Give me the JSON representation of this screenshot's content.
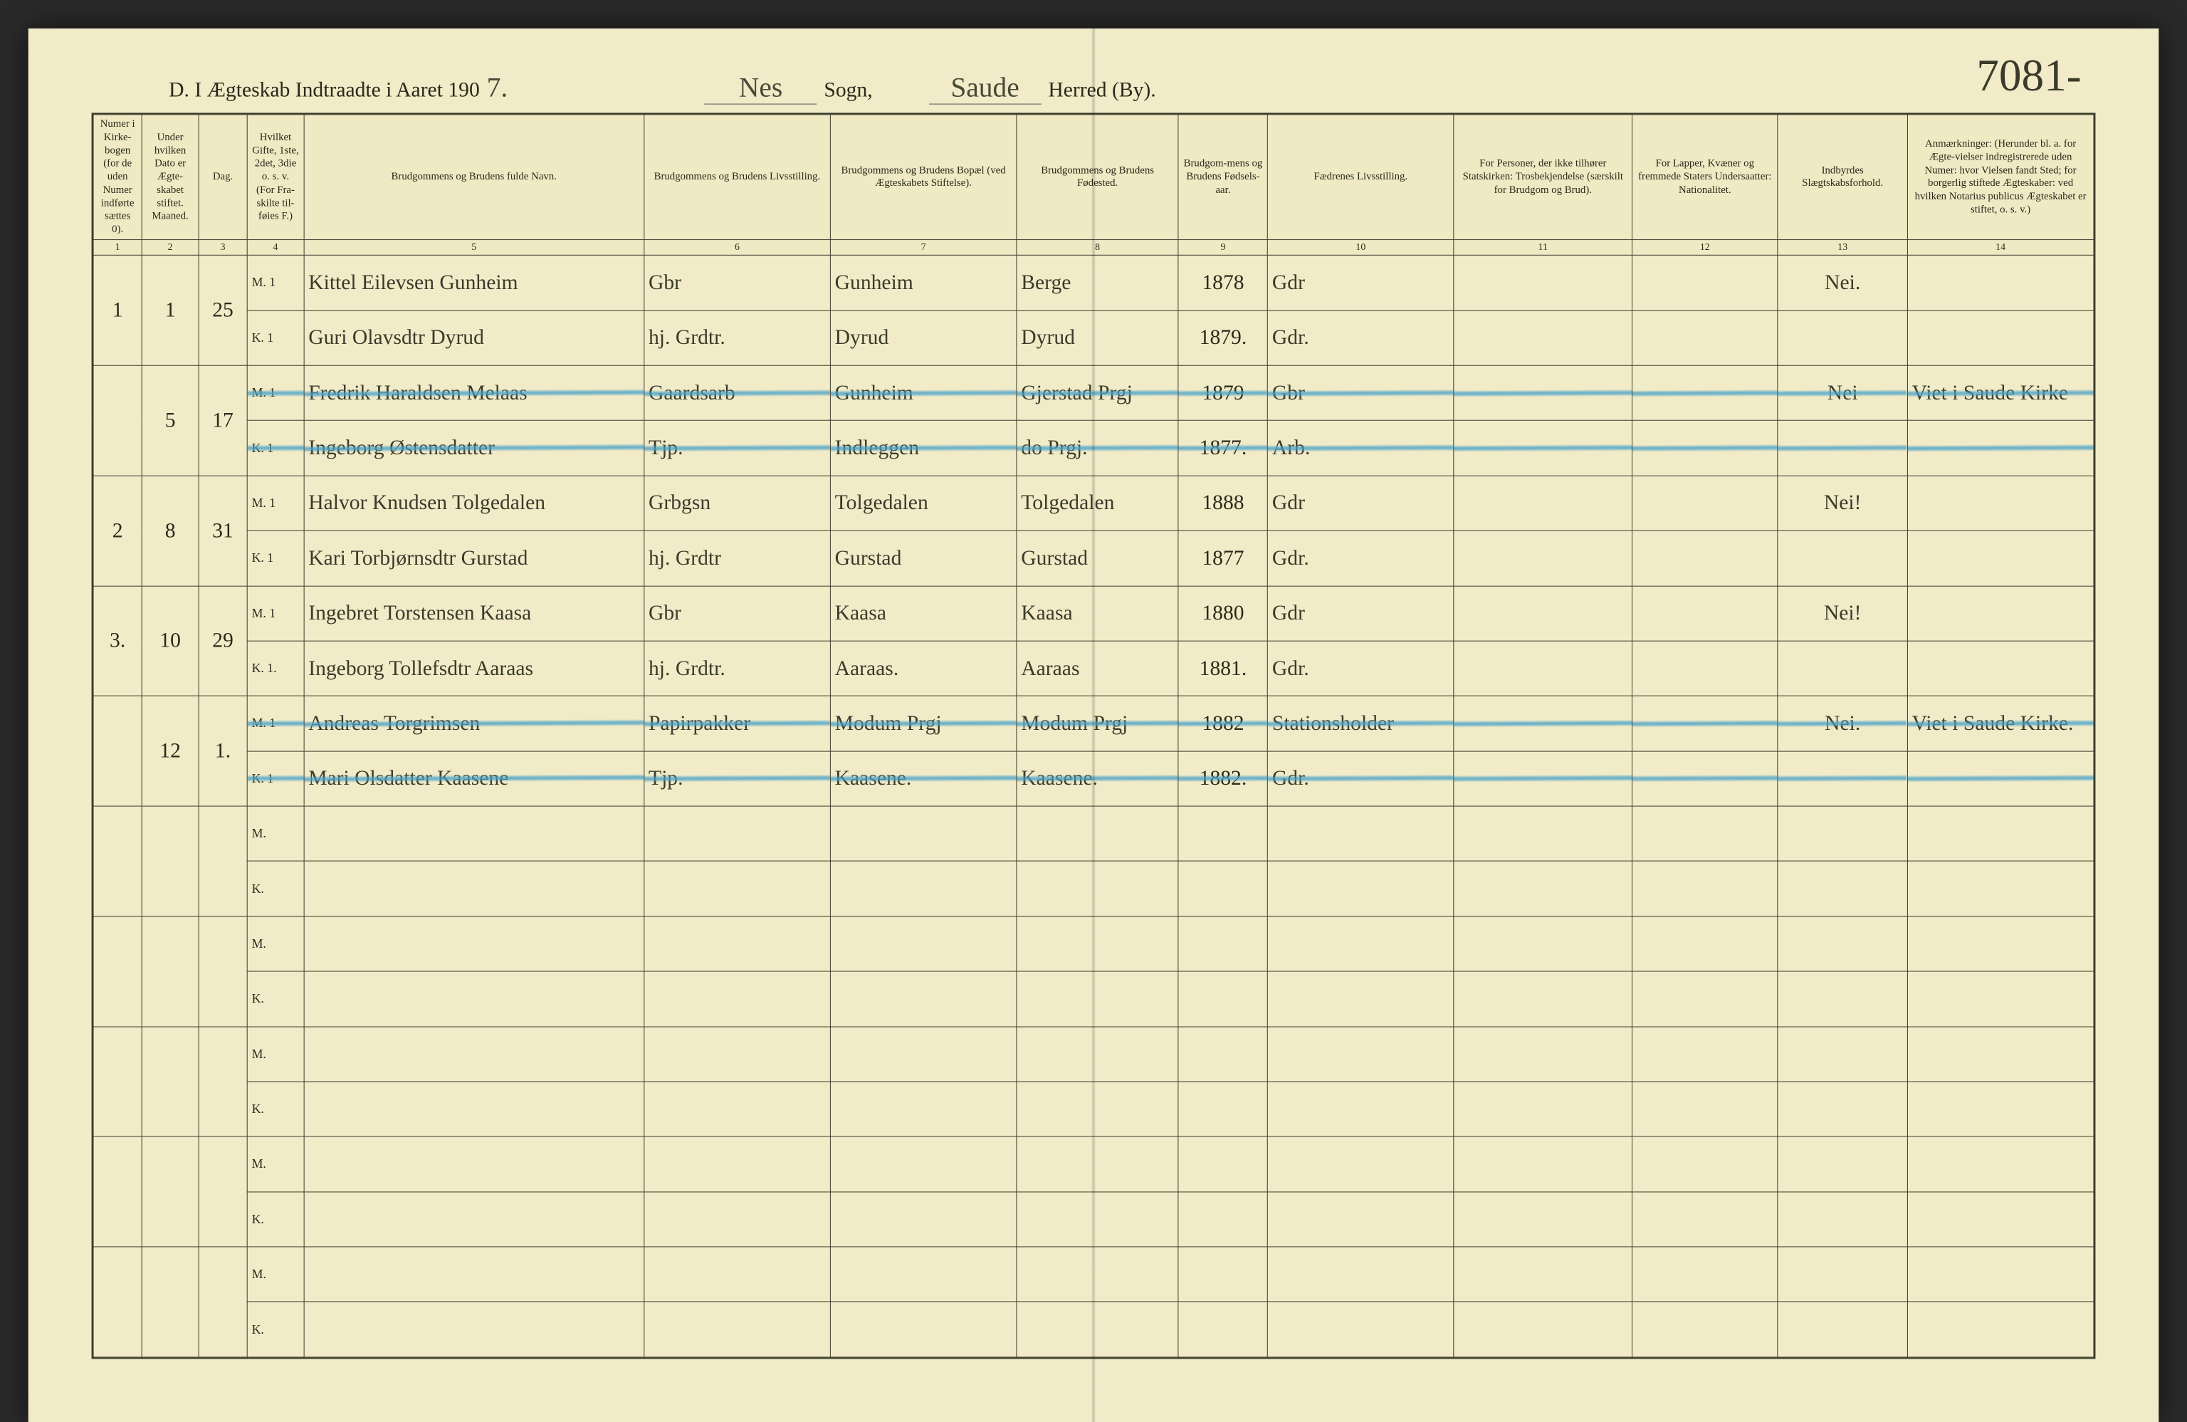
{
  "page_number_handwritten": "7081-",
  "header": {
    "prefix": "D.   I Ægteskab Indtraadte i Aaret 190",
    "year_suffix": "7.",
    "sogn_value": "Nes",
    "sogn_label": "Sogn,",
    "herred_value": "Saude",
    "herred_label": "Herred (By)."
  },
  "colors": {
    "paper": "#f1ebc8",
    "ink": "#2a2a1a",
    "rule": "#3a3a2a",
    "blue_strike": "#5aa8cf"
  },
  "columns": [
    {
      "n": "1",
      "label": "Numer i Kirke-bogen (for de uden Numer indførte sættes 0)."
    },
    {
      "n": "2",
      "label": "Under hvilken Dato er Ægte-skabet stiftet.  Maaned."
    },
    {
      "n": "3",
      "label": "Dag."
    },
    {
      "n": "4",
      "label": "Hvilket Gifte, 1ste, 2det, 3die o. s. v. (For Fra-skilte til-føies F.)"
    },
    {
      "n": "5",
      "label": "Brudgommens og Brudens fulde Navn."
    },
    {
      "n": "6",
      "label": "Brudgommens og Brudens Livsstilling."
    },
    {
      "n": "7",
      "label": "Brudgommens og Brudens Bopæl (ved Ægteskabets Stiftelse)."
    },
    {
      "n": "8",
      "label": "Brudgommens og Brudens Fødested."
    },
    {
      "n": "9",
      "label": "Brudgom-mens og Brudens Fødsels-aar."
    },
    {
      "n": "10",
      "label": "Fædrenes Livsstilling."
    },
    {
      "n": "11",
      "label": "For Personer, der ikke tilhører Statskirken: Trosbekjendelse (særskilt for Brudgom og Brud)."
    },
    {
      "n": "12",
      "label": "For Lapper, Kvæner og fremmede Staters Undersaatter: Nationalitet."
    },
    {
      "n": "13",
      "label": "Indbyrdes Slægtskabsforhold."
    },
    {
      "n": "14",
      "label": "Anmærkninger: (Herunder bl. a. for Ægte-vielser indregistrerede uden Numer: hvor Vielsen fandt Sted; for borgerlig stiftede Ægteskaber: ved hvilken Notarius publicus Ægteskabet er stiftet, o. s. v.)"
    }
  ],
  "entries": [
    {
      "num": "1",
      "maaned": "1",
      "dag": "25",
      "struck": false,
      "m": {
        "gift": "M. 1",
        "navn": "Kittel Eilevsen Gunheim",
        "stilling": "Gbr",
        "bopael": "Gunheim",
        "fodested": "Berge",
        "aar": "1878",
        "faedre": "Gdr",
        "c11": "",
        "c12": "",
        "slaegt": "Nei.",
        "anm": ""
      },
      "k": {
        "gift": "K. 1",
        "navn": "Guri Olavsdtr Dyrud",
        "stilling": "hj. Grdtr.",
        "bopael": "Dyrud",
        "fodested": "Dyrud",
        "aar": "1879.",
        "faedre": "Gdr.",
        "c11": "",
        "c12": "",
        "slaegt": "",
        "anm": ""
      }
    },
    {
      "num": "",
      "maaned": "5",
      "dag": "17",
      "struck": true,
      "m": {
        "gift": "M. 1",
        "navn": "Fredrik Haraldsen Melaas",
        "stilling": "Gaardsarb",
        "bopael": "Gunheim",
        "fodested": "Gjerstad Prgj",
        "aar": "1879",
        "faedre": "Gbr",
        "c11": "",
        "c12": "",
        "slaegt": "Nei",
        "anm": "Viet i Saude Kirke"
      },
      "k": {
        "gift": "K. 1",
        "navn": "Ingeborg Østensdatter",
        "stilling": "Tjp.",
        "bopael": "Indleggen",
        "fodested": "do Prgj.",
        "aar": "1877.",
        "faedre": "Arb.",
        "c11": "",
        "c12": "",
        "slaegt": "",
        "anm": ""
      }
    },
    {
      "num": "2",
      "maaned": "8",
      "dag": "31",
      "struck": false,
      "m": {
        "gift": "M. 1",
        "navn": "Halvor Knudsen Tolgedalen",
        "stilling": "Grbgsn",
        "bopael": "Tolgedalen",
        "fodested": "Tolgedalen",
        "aar": "1888",
        "faedre": "Gdr",
        "c11": "",
        "c12": "",
        "slaegt": "Nei!",
        "anm": ""
      },
      "k": {
        "gift": "K. 1",
        "navn": "Kari Torbjørnsdtr Gurstad",
        "stilling": "hj. Grdtr",
        "bopael": "Gurstad",
        "fodested": "Gurstad",
        "aar": "1877",
        "faedre": "Gdr.",
        "c11": "",
        "c12": "",
        "slaegt": "",
        "anm": ""
      }
    },
    {
      "num": "3.",
      "maaned": "10",
      "dag": "29",
      "struck": false,
      "m": {
        "gift": "M. 1",
        "navn": "Ingebret Torstensen Kaasa",
        "stilling": "Gbr",
        "bopael": "Kaasa",
        "fodested": "Kaasa",
        "aar": "1880",
        "faedre": "Gdr",
        "c11": "",
        "c12": "",
        "slaegt": "Nei!",
        "anm": ""
      },
      "k": {
        "gift": "K. 1.",
        "navn": "Ingeborg Tollefsdtr Aaraas",
        "stilling": "hj. Grdtr.",
        "bopael": "Aaraas.",
        "fodested": "Aaraas",
        "aar": "1881.",
        "faedre": "Gdr.",
        "c11": "",
        "c12": "",
        "slaegt": "",
        "anm": ""
      }
    },
    {
      "num": "",
      "maaned": "12",
      "dag": "1.",
      "struck": true,
      "m": {
        "gift": "M. 1",
        "navn": "Andreas Torgrimsen",
        "stilling": "Papirpakker",
        "bopael": "Modum Prgj",
        "fodested": "Modum Prgj",
        "aar": "1882",
        "faedre": "Stationsholder",
        "c11": "",
        "c12": "",
        "slaegt": "Nei.",
        "anm": "Viet i Saude Kirke."
      },
      "k": {
        "gift": "K. 1",
        "navn": "Mari Olsdatter Kaasene",
        "stilling": "Tjp.",
        "bopael": "Kaasene.",
        "fodested": "Kaasene.",
        "aar": "1882.",
        "faedre": "Gdr.",
        "c11": "",
        "c12": "",
        "slaegt": "",
        "anm": ""
      }
    }
  ],
  "empty_pairs": 5,
  "mk_labels": {
    "m": "M.",
    "k": "K."
  }
}
